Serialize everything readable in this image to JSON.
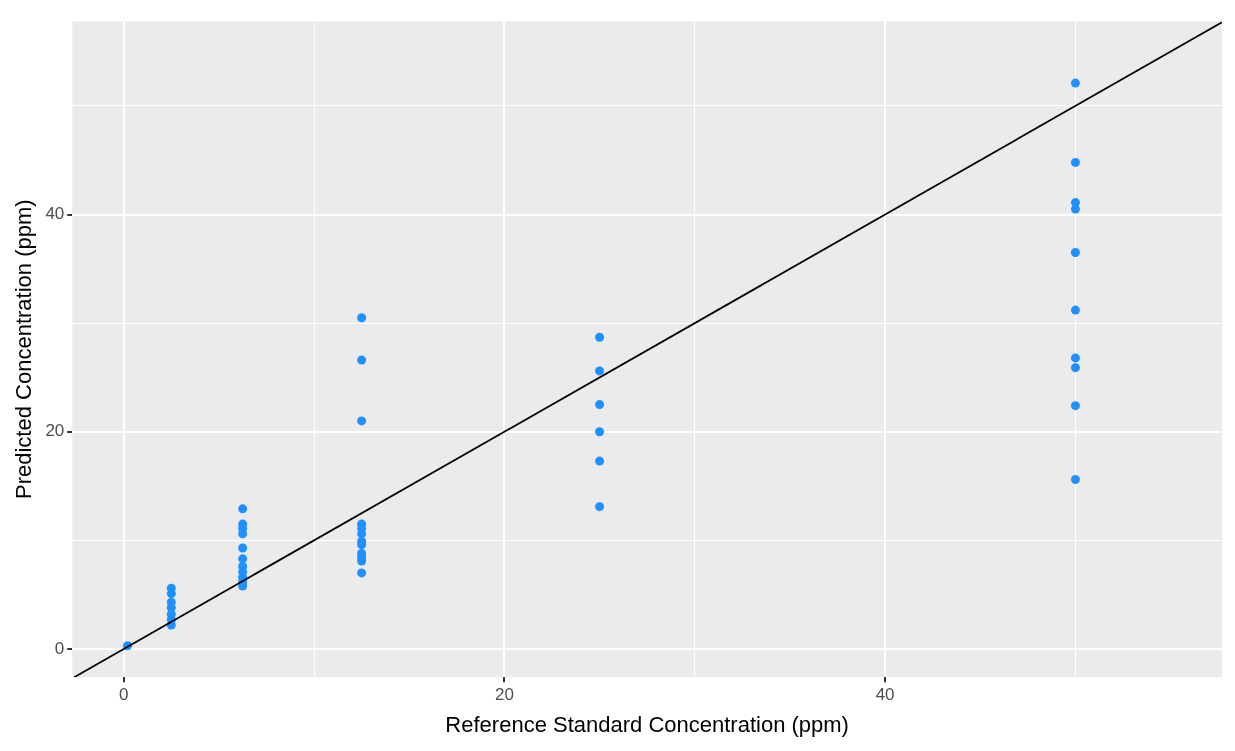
{
  "chart_data": {
    "type": "scatter",
    "xlabel": "Reference Standard Concentration (ppm)",
    "ylabel": "Predicted Concentration (ppm)",
    "xlim": [
      -2.7,
      57.7
    ],
    "ylim": [
      -2.6,
      57.8
    ],
    "xticks": [
      0,
      {
        "value": 10,
        "label": null
      },
      20,
      {
        "value": 30,
        "label": null
      },
      40,
      {
        "value": 50,
        "label": null
      }
    ],
    "yticks": [
      0,
      {
        "value": 10,
        "label": null
      },
      20,
      {
        "value": 30,
        "label": null
      },
      40,
      {
        "value": 50,
        "label": null
      }
    ],
    "grid": true,
    "legend": false,
    "marker": "circle",
    "series": [
      {
        "color": "#1e90ff",
        "x": [
          0.2,
          2.5,
          2.5,
          2.5,
          2.5,
          2.5,
          2.5,
          2.5,
          6.25,
          6.25,
          6.25,
          6.25,
          6.25,
          6.25,
          6.25,
          6.25,
          6.25,
          6.25,
          6.25,
          12.5,
          12.5,
          12.5,
          12.5,
          12.5,
          12.5,
          12.5,
          12.5,
          12.5,
          12.5,
          12.5,
          12.5,
          25,
          25,
          25,
          25,
          25,
          25,
          50,
          50,
          50,
          50,
          50,
          50,
          50,
          50,
          50,
          50
        ],
        "values": [
          0.3,
          5.6,
          5.1,
          4.3,
          3.8,
          3.2,
          2.7,
          2.2,
          12.9,
          11.5,
          11.1,
          10.6,
          9.3,
          8.3,
          7.6,
          7.1,
          6.6,
          6.2,
          5.8,
          30.5,
          26.6,
          21.0,
          11.5,
          11.1,
          10.6,
          9.9,
          9.6,
          8.8,
          8.4,
          8.1,
          7.0,
          28.7,
          25.6,
          22.5,
          20.0,
          17.3,
          13.1,
          52.1,
          44.8,
          41.1,
          40.5,
          36.5,
          31.2,
          26.8,
          25.9,
          22.4,
          15.6
        ]
      },
      {
        "type": "line",
        "color": "#000000",
        "marker": "none",
        "line_style": "solid",
        "x": [
          -2.6,
          57.7
        ],
        "values": [
          -2.6,
          57.7
        ]
      }
    ]
  }
}
